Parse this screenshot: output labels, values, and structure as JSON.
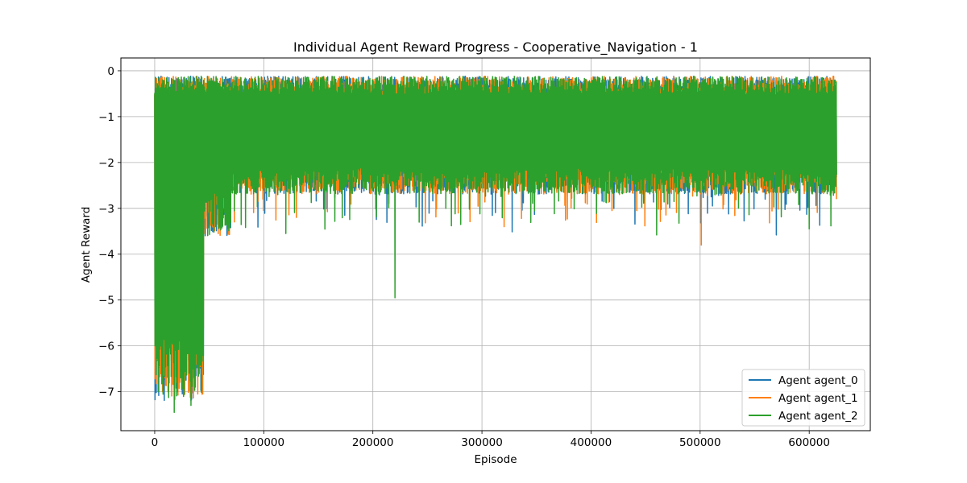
{
  "chart_data": {
    "type": "line",
    "title": "Individual Agent Reward Progress - Cooperative_Navigation - 1",
    "xlabel": "Episode",
    "ylabel": "Agent Reward",
    "xlim": [
      -31000,
      656000
    ],
    "ylim": [
      -7.85,
      0.28
    ],
    "xticks": [
      0,
      100000,
      200000,
      300000,
      400000,
      500000,
      600000
    ],
    "xtick_labels": [
      "0",
      "100000",
      "200000",
      "300000",
      "400000",
      "500000",
      "600000"
    ],
    "yticks": [
      0,
      -1,
      -2,
      -3,
      -4,
      -5,
      -6,
      -7
    ],
    "ytick_labels": [
      "0",
      "−1",
      "−2",
      "−3",
      "−4",
      "−5",
      "−6",
      "−7"
    ],
    "grid": true,
    "legend_position": "lower-right",
    "x_range": [
      0,
      625000
    ],
    "envelope": {
      "upper_min": -0.55,
      "upper_max": -0.12,
      "early_low": -7.2,
      "late_low_typical": -2.45,
      "early_phase_end": 45000
    },
    "series": [
      {
        "name": "Agent agent_0",
        "color": "#1f77b4",
        "dips": [
          [
            174000,
            -3.15
          ],
          [
            417000,
            -2.85
          ],
          [
            570000,
            -3.58
          ],
          [
            510000,
            -2.75
          ]
        ]
      },
      {
        "name": "Agent agent_1",
        "color": "#ff7f0e",
        "dips": [
          [
            130000,
            -3.2
          ],
          [
            336000,
            -3.22
          ],
          [
            419000,
            -3.05
          ],
          [
            501000,
            -3.8
          ],
          [
            625000,
            -2.8
          ]
        ]
      },
      {
        "name": "Agent agent_2",
        "color": "#2ca02c",
        "dips": [
          [
            220000,
            -4.95
          ],
          [
            0,
            -6.0
          ],
          [
            3000,
            -7.0
          ],
          [
            18000,
            -7.45
          ],
          [
            33000,
            -7.3
          ],
          [
            120000,
            -3.55
          ],
          [
            460000,
            -3.58
          ],
          [
            600000,
            -3.45
          ],
          [
            272000,
            -3.38
          ],
          [
            298000,
            -3.12
          ]
        ]
      }
    ]
  }
}
